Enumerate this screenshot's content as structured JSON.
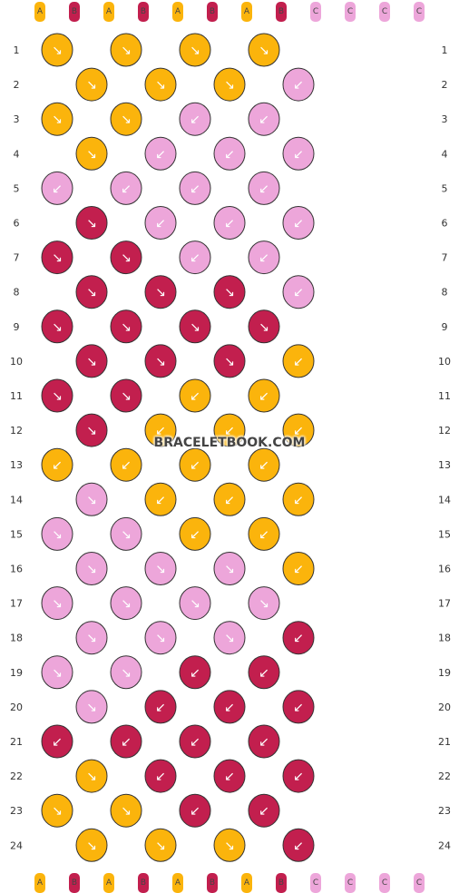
{
  "watermark": "BRACELETBOOK.COM",
  "colors": {
    "A": "#fbb40c",
    "B": "#c21f4e",
    "C": "#eda6da"
  },
  "strands_top": [
    "A",
    "B",
    "A",
    "B",
    "A",
    "B",
    "A",
    "B",
    "C",
    "C",
    "C",
    "C"
  ],
  "strands_bottom": [
    "A",
    "B",
    "A",
    "B",
    "A",
    "B",
    "A",
    "B",
    "C",
    "C",
    "C",
    "C"
  ],
  "rows": [
    {
      "n": 1,
      "knots": [
        [
          "A",
          "↘"
        ],
        [
          "A",
          "↘"
        ],
        [
          "A",
          "↘"
        ],
        [
          "A",
          "↘"
        ]
      ]
    },
    {
      "n": 2,
      "knots": [
        [
          "A",
          "↘"
        ],
        [
          "A",
          "↘"
        ],
        [
          "A",
          "↘"
        ],
        [
          "C",
          "↙"
        ]
      ]
    },
    {
      "n": 3,
      "knots": [
        [
          "A",
          "↘"
        ],
        [
          "A",
          "↘"
        ],
        [
          "C",
          "↙"
        ],
        [
          "C",
          "↙"
        ]
      ]
    },
    {
      "n": 4,
      "knots": [
        [
          "A",
          "↘"
        ],
        [
          "C",
          "↙"
        ],
        [
          "C",
          "↙"
        ],
        [
          "C",
          "↙"
        ]
      ]
    },
    {
      "n": 5,
      "knots": [
        [
          "C",
          "↙"
        ],
        [
          "C",
          "↙"
        ],
        [
          "C",
          "↙"
        ],
        [
          "C",
          "↙"
        ]
      ]
    },
    {
      "n": 6,
      "knots": [
        [
          "B",
          "↘"
        ],
        [
          "C",
          "↙"
        ],
        [
          "C",
          "↙"
        ],
        [
          "C",
          "↙"
        ]
      ]
    },
    {
      "n": 7,
      "knots": [
        [
          "B",
          "↘"
        ],
        [
          "B",
          "↘"
        ],
        [
          "C",
          "↙"
        ],
        [
          "C",
          "↙"
        ]
      ]
    },
    {
      "n": 8,
      "knots": [
        [
          "B",
          "↘"
        ],
        [
          "B",
          "↘"
        ],
        [
          "B",
          "↘"
        ],
        [
          "C",
          "↙"
        ]
      ]
    },
    {
      "n": 9,
      "knots": [
        [
          "B",
          "↘"
        ],
        [
          "B",
          "↘"
        ],
        [
          "B",
          "↘"
        ],
        [
          "B",
          "↘"
        ]
      ]
    },
    {
      "n": 10,
      "knots": [
        [
          "B",
          "↘"
        ],
        [
          "B",
          "↘"
        ],
        [
          "B",
          "↘"
        ],
        [
          "A",
          "↙"
        ]
      ]
    },
    {
      "n": 11,
      "knots": [
        [
          "B",
          "↘"
        ],
        [
          "B",
          "↘"
        ],
        [
          "A",
          "↙"
        ],
        [
          "A",
          "↙"
        ]
      ]
    },
    {
      "n": 12,
      "knots": [
        [
          "B",
          "↘"
        ],
        [
          "A",
          "↙"
        ],
        [
          "A",
          "↙"
        ],
        [
          "A",
          "↙"
        ]
      ]
    },
    {
      "n": 13,
      "knots": [
        [
          "A",
          "↙"
        ],
        [
          "A",
          "↙"
        ],
        [
          "A",
          "↙"
        ],
        [
          "A",
          "↙"
        ]
      ]
    },
    {
      "n": 14,
      "knots": [
        [
          "C",
          "↘"
        ],
        [
          "A",
          "↙"
        ],
        [
          "A",
          "↙"
        ],
        [
          "A",
          "↙"
        ]
      ]
    },
    {
      "n": 15,
      "knots": [
        [
          "C",
          "↘"
        ],
        [
          "C",
          "↘"
        ],
        [
          "A",
          "↙"
        ],
        [
          "A",
          "↙"
        ]
      ]
    },
    {
      "n": 16,
      "knots": [
        [
          "C",
          "↘"
        ],
        [
          "C",
          "↘"
        ],
        [
          "C",
          "↘"
        ],
        [
          "A",
          "↙"
        ]
      ]
    },
    {
      "n": 17,
      "knots": [
        [
          "C",
          "↘"
        ],
        [
          "C",
          "↘"
        ],
        [
          "C",
          "↘"
        ],
        [
          "C",
          "↘"
        ]
      ]
    },
    {
      "n": 18,
      "knots": [
        [
          "C",
          "↘"
        ],
        [
          "C",
          "↘"
        ],
        [
          "C",
          "↘"
        ],
        [
          "B",
          "↙"
        ]
      ]
    },
    {
      "n": 19,
      "knots": [
        [
          "C",
          "↘"
        ],
        [
          "C",
          "↘"
        ],
        [
          "B",
          "↙"
        ],
        [
          "B",
          "↙"
        ]
      ]
    },
    {
      "n": 20,
      "knots": [
        [
          "C",
          "↘"
        ],
        [
          "B",
          "↙"
        ],
        [
          "B",
          "↙"
        ],
        [
          "B",
          "↙"
        ]
      ]
    },
    {
      "n": 21,
      "knots": [
        [
          "B",
          "↙"
        ],
        [
          "B",
          "↙"
        ],
        [
          "B",
          "↙"
        ],
        [
          "B",
          "↙"
        ]
      ]
    },
    {
      "n": 22,
      "knots": [
        [
          "A",
          "↘"
        ],
        [
          "B",
          "↙"
        ],
        [
          "B",
          "↙"
        ],
        [
          "B",
          "↙"
        ]
      ]
    },
    {
      "n": 23,
      "knots": [
        [
          "A",
          "↘"
        ],
        [
          "A",
          "↘"
        ],
        [
          "B",
          "↙"
        ],
        [
          "B",
          "↙"
        ]
      ]
    },
    {
      "n": 24,
      "knots": [
        [
          "A",
          "↘"
        ],
        [
          "A",
          "↘"
        ],
        [
          "A",
          "↘"
        ],
        [
          "B",
          "↙"
        ]
      ]
    }
  ]
}
